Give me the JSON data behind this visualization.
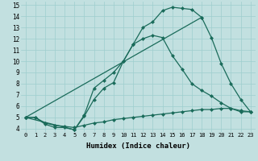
{
  "xlabel": "Humidex (Indice chaleur)",
  "bg_color": "#c2e0e0",
  "line_color": "#1a6b5a",
  "xlim": [
    -0.5,
    23.5
  ],
  "ylim": [
    3.7,
    15.3
  ],
  "yticks": [
    4,
    5,
    6,
    7,
    8,
    9,
    10,
    11,
    12,
    13,
    14,
    15
  ],
  "xticks": [
    0,
    1,
    2,
    3,
    4,
    5,
    6,
    7,
    8,
    9,
    10,
    11,
    12,
    13,
    14,
    15,
    16,
    17,
    18,
    19,
    20,
    21,
    22,
    23
  ],
  "line1_x": [
    0,
    1,
    2,
    3,
    4,
    5,
    6,
    7,
    8,
    9,
    10,
    11,
    12,
    13,
    14,
    15,
    16,
    17,
    18
  ],
  "line1_y": [
    5.0,
    5.0,
    4.4,
    4.1,
    4.1,
    3.9,
    5.1,
    6.6,
    7.6,
    8.1,
    10.0,
    11.5,
    13.0,
    13.5,
    14.5,
    14.8,
    14.7,
    14.6,
    13.9
  ],
  "line2_x": [
    0,
    5,
    6,
    7,
    8,
    9,
    10,
    11,
    12,
    13,
    14,
    15,
    16,
    17,
    18,
    19,
    20,
    21,
    22,
    23
  ],
  "line2_y": [
    5.0,
    3.9,
    5.2,
    7.6,
    8.3,
    9.0,
    10.0,
    11.5,
    12.0,
    12.3,
    12.1,
    10.5,
    9.3,
    8.0,
    7.4,
    6.9,
    6.3,
    5.8,
    5.5,
    5.5
  ],
  "line3_x": [
    0,
    18,
    19,
    20,
    21,
    22,
    23
  ],
  "line3_y": [
    5.0,
    13.9,
    12.1,
    9.8,
    8.0,
    6.6,
    5.5
  ],
  "line4_x": [
    0,
    1,
    2,
    3,
    4,
    5,
    6,
    7,
    8,
    9,
    10,
    11,
    12,
    13,
    14,
    15,
    16,
    17,
    18,
    19,
    20,
    21,
    22,
    23
  ],
  "line4_y": [
    5.0,
    5.0,
    4.5,
    4.3,
    4.2,
    4.1,
    4.3,
    4.5,
    4.6,
    4.8,
    4.9,
    5.0,
    5.1,
    5.2,
    5.3,
    5.4,
    5.5,
    5.6,
    5.7,
    5.7,
    5.8,
    5.8,
    5.6,
    5.5
  ],
  "grid_color": "#9ecece",
  "markersize": 2.5
}
